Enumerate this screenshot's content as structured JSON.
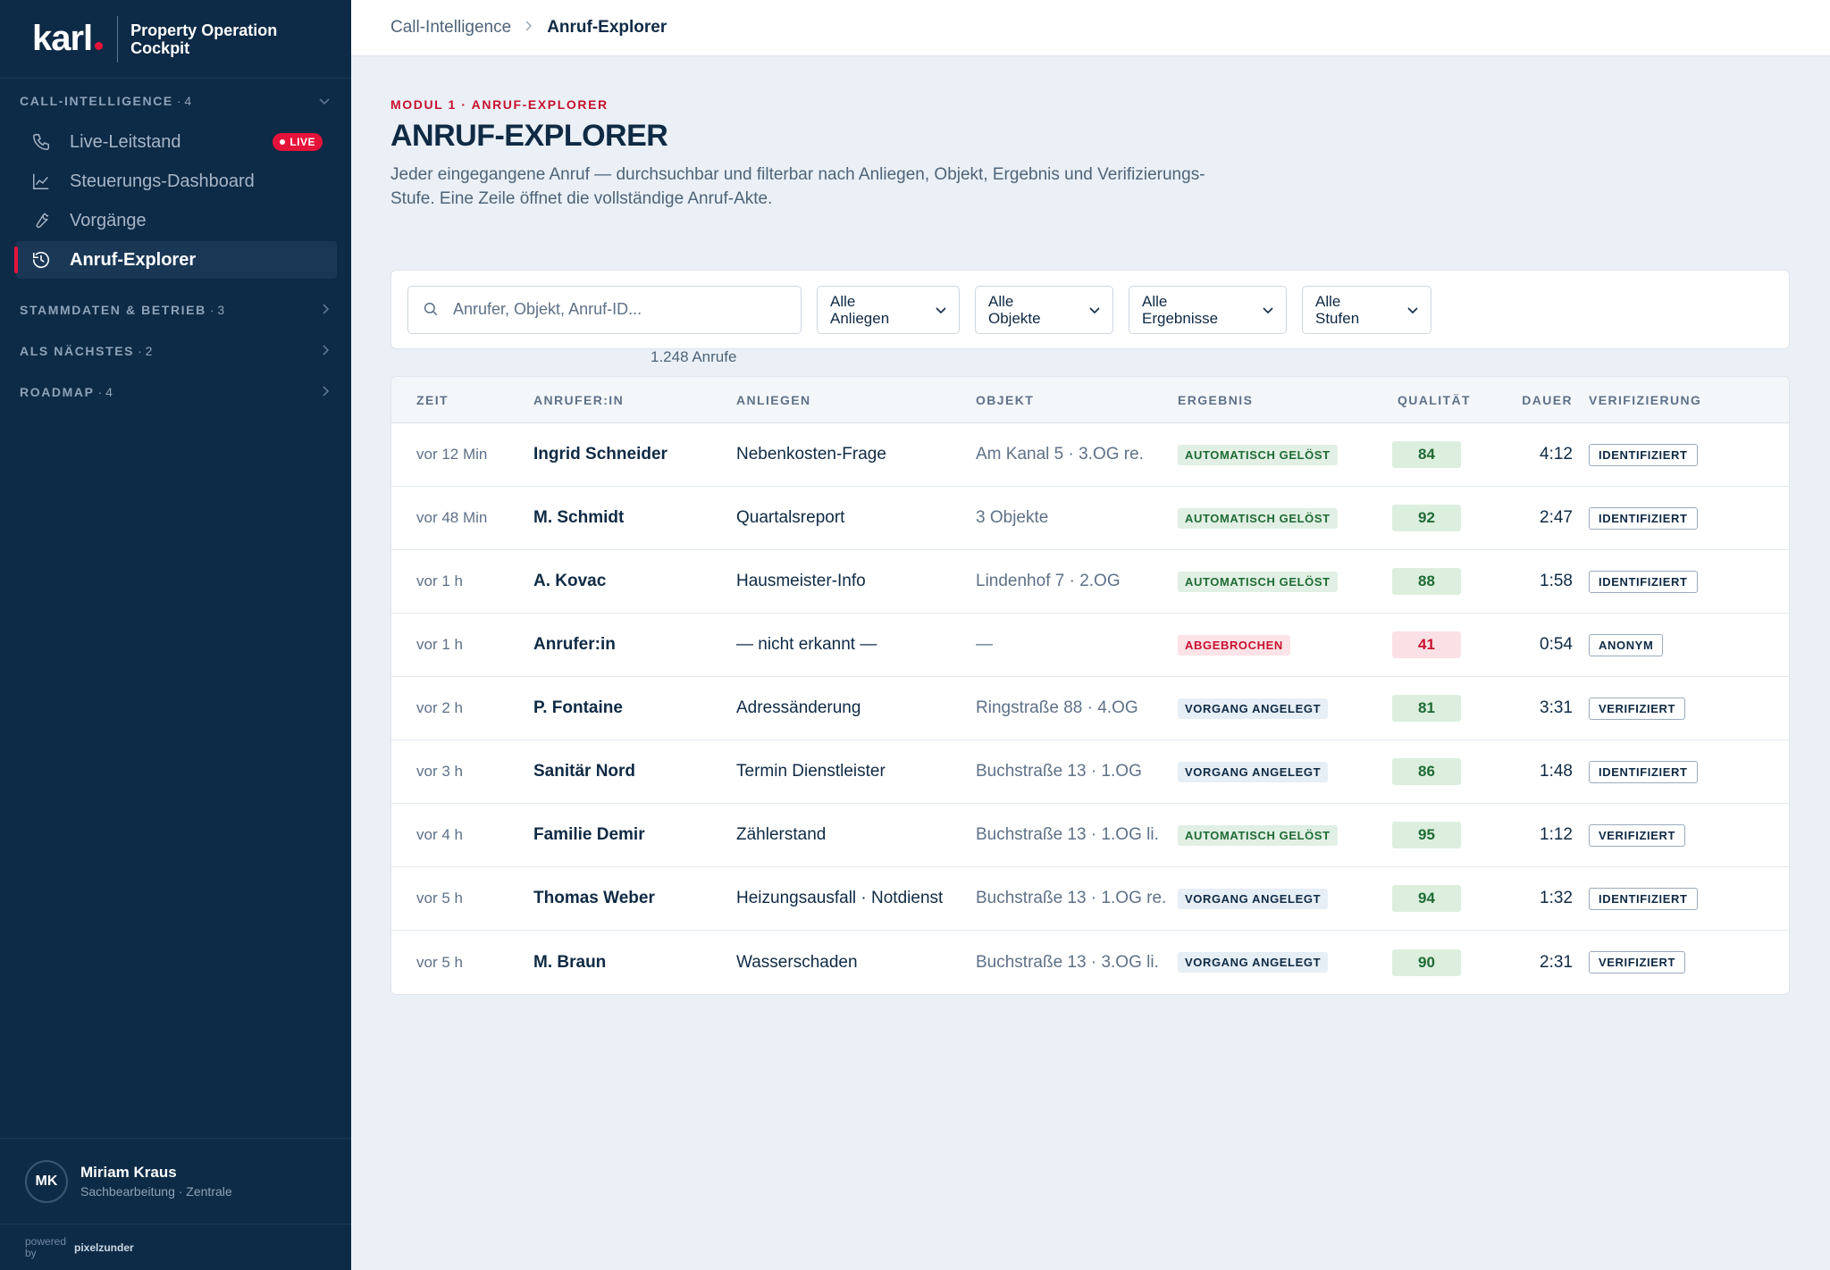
{
  "brand": {
    "logo": "karl",
    "title_line1": "Property Operation",
    "title_line2": "Cockpit",
    "accent": "#e5133a"
  },
  "sidebar": {
    "sections": [
      {
        "label": "CALL-INTELLIGENCE",
        "count": "· 4",
        "expanded": true
      },
      {
        "label": "STAMMDATEN & BETRIEB",
        "count": "· 3",
        "expanded": false
      },
      {
        "label": "ALS NÄCHSTES",
        "count": "· 2",
        "expanded": false
      },
      {
        "label": "ROADMAP",
        "count": "· 4",
        "expanded": false
      }
    ],
    "items": [
      {
        "label": "Live-Leitstand",
        "icon": "phone-icon",
        "badge": "LIVE"
      },
      {
        "label": "Steuerungs-Dashboard",
        "icon": "chart-line-icon"
      },
      {
        "label": "Vorgänge",
        "icon": "wrench-icon"
      },
      {
        "label": "Anruf-Explorer",
        "icon": "history-icon",
        "active": true
      }
    ],
    "user": {
      "initials": "MK",
      "name": "Miriam Kraus",
      "role": "Sachbearbeitung · Zentrale"
    },
    "powered_by": "powered by",
    "powered_name": "pixelzunder"
  },
  "breadcrumb": {
    "parent": "Call-Intelligence",
    "separator": ">",
    "current": "Anruf-Explorer"
  },
  "page": {
    "eyebrow": "MODUL 1 · ANRUF-EXPLORER",
    "title": "ANRUF-EXPLORER",
    "description": "Jeder eingegangene Anruf — durchsuchbar und filterbar nach Anliegen, Objekt, Ergebnis und Verifizierungs-Stufe. Eine Zeile öffnet die vollständige Anruf-Akte."
  },
  "filters": {
    "search_placeholder": "Anrufer, Objekt, Anruf-ID...",
    "selects": [
      {
        "line1": "Alle",
        "line2": "Anliegen"
      },
      {
        "line1": "Alle",
        "line2": "Objekte"
      },
      {
        "line1": "Alle",
        "line2": "Ergebnisse"
      },
      {
        "line1": "Alle",
        "line2": "Stufen"
      }
    ],
    "result_count": "1.248 Anrufe"
  },
  "table": {
    "columns": [
      "ZEIT",
      "ANRUFER:IN",
      "ANLIEGEN",
      "OBJEKT",
      "ERGEBNIS",
      "QUALITÄT",
      "DAUER",
      "VERIFIZIERUNG"
    ],
    "rows": [
      {
        "time": "vor 12 Min",
        "caller": "Ingrid Schneider",
        "concern": "Nebenkosten-Frage",
        "object": "Am Kanal 5 · 3.OG re.",
        "result": "AUTOMATISCH GELÖST",
        "result_type": "auto",
        "quality": "84",
        "quality_type": "good",
        "duration": "4:12",
        "verification": "IDENTIFIZIERT"
      },
      {
        "time": "vor 48 Min",
        "caller": "M. Schmidt",
        "concern": "Quartalsreport",
        "object": "3 Objekte",
        "result": "AUTOMATISCH GELÖST",
        "result_type": "auto",
        "quality": "92",
        "quality_type": "good",
        "duration": "2:47",
        "verification": "IDENTIFIZIERT"
      },
      {
        "time": "vor 1 h",
        "caller": "A. Kovac",
        "concern": "Hausmeister-Info",
        "object": "Lindenhof 7 · 2.OG",
        "result": "AUTOMATISCH GELÖST",
        "result_type": "auto",
        "quality": "88",
        "quality_type": "good",
        "duration": "1:58",
        "verification": "IDENTIFIZIERT"
      },
      {
        "time": "vor 1 h",
        "caller": "Anrufer:in",
        "concern": "— nicht erkannt —",
        "object": "—",
        "result": "ABGEBROCHEN",
        "result_type": "abbr",
        "quality": "41",
        "quality_type": "bad",
        "duration": "0:54",
        "verification": "ANONYM"
      },
      {
        "time": "vor 2 h",
        "caller": "P. Fontaine",
        "concern": "Adressänderung",
        "object": "Ringstraße 88 · 4.OG",
        "result": "VORGANG ANGELEGT",
        "result_type": "vorgang",
        "quality": "81",
        "quality_type": "good",
        "duration": "3:31",
        "verification": "VERIFIZIERT"
      },
      {
        "time": "vor 3 h",
        "caller": "Sanitär Nord",
        "concern": "Termin Dienstleister",
        "object": "Buchstraße 13 · 1.OG",
        "result": "VORGANG ANGELEGT",
        "result_type": "vorgang",
        "quality": "86",
        "quality_type": "good",
        "duration": "1:48",
        "verification": "IDENTIFIZIERT"
      },
      {
        "time": "vor 4 h",
        "caller": "Familie Demir",
        "concern": "Zählerstand",
        "object": "Buchstraße 13 · 1.OG li.",
        "result": "AUTOMATISCH GELÖST",
        "result_type": "auto",
        "quality": "95",
        "quality_type": "good",
        "duration": "1:12",
        "verification": "VERIFIZIERT"
      },
      {
        "time": "vor 5 h",
        "caller": "Thomas Weber",
        "concern": "Heizungsausfall · Notdienst",
        "object": "Buchstraße 13 · 1.OG re.",
        "result": "VORGANG ANGELEGT",
        "result_type": "vorgang",
        "quality": "94",
        "quality_type": "good",
        "duration": "1:32",
        "verification": "IDENTIFIZIERT"
      },
      {
        "time": "vor 5 h",
        "caller": "M. Braun",
        "concern": "Wasserschaden",
        "object": "Buchstraße 13 · 3.OG li.",
        "result": "VORGANG ANGELEGT",
        "result_type": "vorgang",
        "quality": "90",
        "quality_type": "good",
        "duration": "2:31",
        "verification": "VERIFIZIERT"
      }
    ]
  }
}
